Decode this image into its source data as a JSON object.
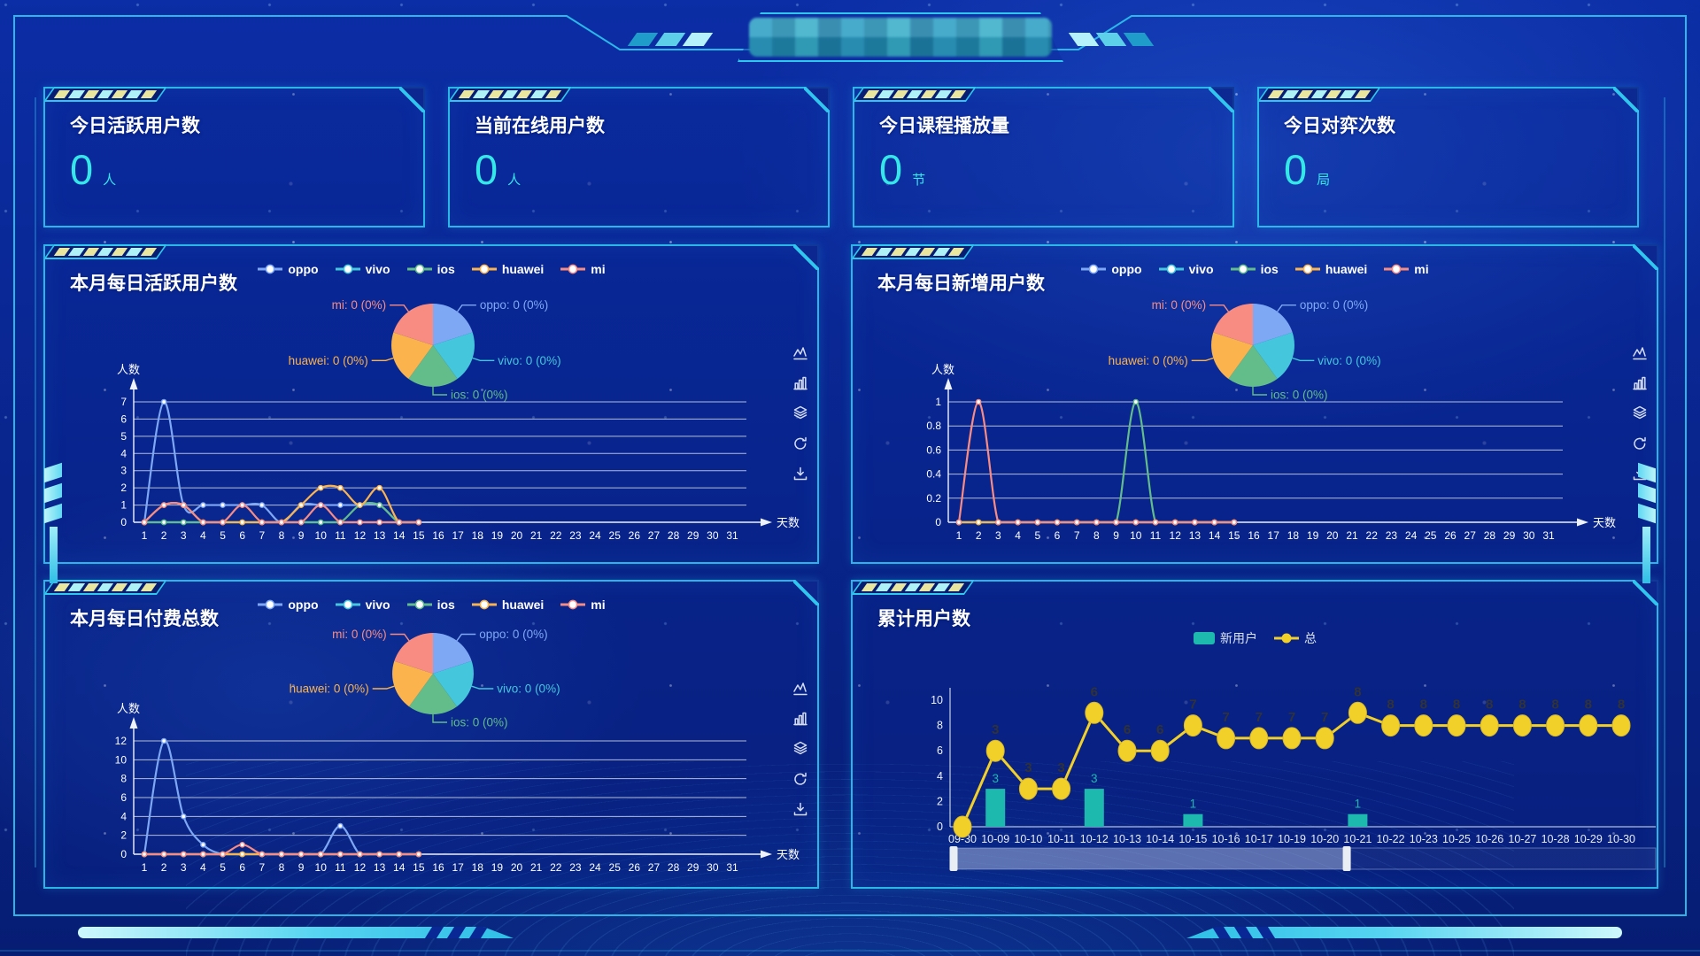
{
  "header": {
    "title_masked": true
  },
  "stats": [
    {
      "title": "今日活跃用户数",
      "value": "0",
      "unit": "人"
    },
    {
      "title": "当前在线用户数",
      "value": "0",
      "unit": "人"
    },
    {
      "title": "今日课程播放量",
      "value": "0",
      "unit": "节"
    },
    {
      "title": "今日对弈次数",
      "value": "0",
      "unit": "局"
    }
  ],
  "colors": {
    "accent": "#2bd2f5",
    "panel_border": "#2fc7ee",
    "stat_value": "#35e8e8",
    "oppo": "#7fa8f4",
    "vivo": "#44c7dc",
    "ios": "#63bd8a",
    "huawei": "#fbb44d",
    "mi": "#f88c83",
    "new_user_bar": "#1db8ae",
    "total_line": "#f2d02a",
    "line_label": "#333333",
    "grid_line": "#dde3ee"
  },
  "toolbox": {
    "icons": [
      "line-chart",
      "bar-chart",
      "stacked-layers",
      "restore",
      "download"
    ]
  },
  "chart_data": [
    {
      "id": "daily_active",
      "type": "line",
      "title": "本月每日活跃用户数",
      "x_axis": {
        "label": "天数",
        "min": 1,
        "max": 31
      },
      "y_axis": {
        "label": "人数",
        "ticks": [
          0,
          1,
          2,
          3,
          4,
          5,
          6,
          7
        ]
      },
      "legend": [
        "oppo",
        "vivo",
        "ios",
        "huawei",
        "mi"
      ],
      "series": [
        {
          "name": "oppo",
          "values": [
            0,
            7,
            1,
            1,
            1,
            1,
            1,
            0,
            1,
            1,
            1,
            1,
            1,
            0,
            0
          ]
        },
        {
          "name": "vivo",
          "values": [
            0,
            0,
            0,
            0,
            0,
            0,
            0,
            0,
            0,
            0,
            0,
            0,
            0,
            0,
            0
          ]
        },
        {
          "name": "ios",
          "values": [
            0,
            0,
            0,
            0,
            0,
            0,
            0,
            0,
            0,
            0,
            0,
            1,
            1,
            0,
            0
          ]
        },
        {
          "name": "huawei",
          "values": [
            0,
            1,
            1,
            0,
            0,
            0,
            0,
            0,
            1,
            2,
            2,
            1,
            2,
            0,
            0
          ]
        },
        {
          "name": "mi",
          "values": [
            0,
            1,
            1,
            0,
            0,
            1,
            0,
            0,
            0,
            1,
            0,
            0,
            0,
            0,
            0
          ]
        }
      ],
      "pie": {
        "slices": [
          {
            "name": "oppo",
            "value": 0,
            "percent": "0%"
          },
          {
            "name": "vivo",
            "value": 0,
            "percent": "0%"
          },
          {
            "name": "ios",
            "value": 0,
            "percent": "0%"
          },
          {
            "name": "huawei",
            "value": 0,
            "percent": "0%"
          },
          {
            "name": "mi",
            "value": 0,
            "percent": "0%"
          }
        ]
      }
    },
    {
      "id": "daily_new",
      "type": "line",
      "title": "本月每日新增用户数",
      "x_axis": {
        "label": "天数",
        "min": 1,
        "max": 31
      },
      "y_axis": {
        "label": "人数",
        "ticks": [
          0,
          0.2,
          0.4,
          0.6,
          0.8,
          1
        ]
      },
      "legend": [
        "oppo",
        "vivo",
        "ios",
        "huawei",
        "mi"
      ],
      "series": [
        {
          "name": "oppo",
          "values": [
            0,
            0,
            0,
            0,
            0,
            0,
            0,
            0,
            0,
            0,
            0,
            0,
            0,
            0,
            0
          ]
        },
        {
          "name": "vivo",
          "values": [
            0,
            0,
            0,
            0,
            0,
            0,
            0,
            0,
            0,
            0,
            0,
            0,
            0,
            0,
            0
          ]
        },
        {
          "name": "ios",
          "values": [
            0,
            0,
            0,
            0,
            0,
            0,
            0,
            0,
            0,
            1,
            0,
            0,
            0,
            0,
            0
          ]
        },
        {
          "name": "huawei",
          "values": [
            0,
            0,
            0,
            0,
            0,
            0,
            0,
            0,
            0,
            0,
            0,
            0,
            0,
            0,
            0
          ]
        },
        {
          "name": "mi",
          "values": [
            0,
            1,
            0,
            0,
            0,
            0,
            0,
            0,
            0,
            0,
            0,
            0,
            0,
            0,
            0
          ]
        }
      ],
      "pie": {
        "slices": [
          {
            "name": "oppo",
            "value": 0,
            "percent": "0%"
          },
          {
            "name": "vivo",
            "value": 0,
            "percent": "0%"
          },
          {
            "name": "ios",
            "value": 0,
            "percent": "0%"
          },
          {
            "name": "huawei",
            "value": 0,
            "percent": "0%"
          },
          {
            "name": "mi",
            "value": 0,
            "percent": "0%"
          }
        ]
      }
    },
    {
      "id": "daily_pay",
      "type": "line",
      "title": "本月每日付费总数",
      "x_axis": {
        "label": "天数",
        "min": 1,
        "max": 31
      },
      "y_axis": {
        "label": "人数",
        "ticks": [
          0,
          2,
          4,
          6,
          8,
          10,
          12
        ]
      },
      "legend": [
        "oppo",
        "vivo",
        "ios",
        "huawei",
        "mi"
      ],
      "series": [
        {
          "name": "oppo",
          "values": [
            0,
            12,
            4,
            1,
            0,
            0,
            0,
            0,
            0,
            0,
            3,
            0,
            0,
            0,
            0
          ]
        },
        {
          "name": "vivo",
          "values": [
            0,
            0,
            0,
            0,
            0,
            0,
            0,
            0,
            0,
            0,
            0,
            0,
            0,
            0,
            0
          ]
        },
        {
          "name": "ios",
          "values": [
            0,
            0,
            0,
            0,
            0,
            0,
            0,
            0,
            0,
            0,
            0,
            0,
            0,
            0,
            0
          ]
        },
        {
          "name": "huawei",
          "values": [
            0,
            0,
            0,
            0,
            0,
            0,
            0,
            0,
            0,
            0,
            0,
            0,
            0,
            0,
            0
          ]
        },
        {
          "name": "mi",
          "values": [
            0,
            0,
            0,
            0,
            0,
            1,
            0,
            0,
            0,
            0,
            0,
            0,
            0,
            0,
            0
          ]
        }
      ],
      "pie": {
        "slices": [
          {
            "name": "oppo",
            "value": 0,
            "percent": "0%"
          },
          {
            "name": "vivo",
            "value": 0,
            "percent": "0%"
          },
          {
            "name": "ios",
            "value": 0,
            "percent": "0%"
          },
          {
            "name": "huawei",
            "value": 0,
            "percent": "0%"
          },
          {
            "name": "mi",
            "value": 0,
            "percent": "0%"
          }
        ]
      }
    },
    {
      "id": "cumulative",
      "type": "bar+line",
      "title": "累计用户数",
      "legend": [
        "新用户",
        "总"
      ],
      "categories": [
        "09-30",
        "10-09",
        "10-10",
        "10-11",
        "10-12",
        "10-13",
        "10-14",
        "10-15",
        "10-16",
        "10-17",
        "10-19",
        "10-20",
        "10-21",
        "10-22",
        "10-23",
        "10-25",
        "10-26",
        "10-27",
        "10-28",
        "10-29",
        "10-30"
      ],
      "y_axis": {
        "ticks": [
          0,
          2,
          4,
          6,
          8,
          10
        ]
      },
      "series": [
        {
          "name": "新用户",
          "type": "bar",
          "color_key": "new_user_bar",
          "values": [
            0,
            3,
            0,
            0,
            3,
            0,
            0,
            1,
            0,
            0,
            0,
            0,
            1,
            0,
            0,
            0,
            0,
            0,
            0,
            0,
            0
          ]
        },
        {
          "name": "总",
          "type": "line",
          "color_key": "total_line",
          "stacked_on_bars": true,
          "values": [
            0,
            3,
            3,
            3,
            6,
            6,
            6,
            7,
            7,
            7,
            7,
            7,
            8,
            8,
            8,
            8,
            8,
            8,
            8,
            8,
            8
          ]
        }
      ],
      "data_zoom": {
        "start_pct": 0,
        "end_pct": 56
      }
    }
  ]
}
